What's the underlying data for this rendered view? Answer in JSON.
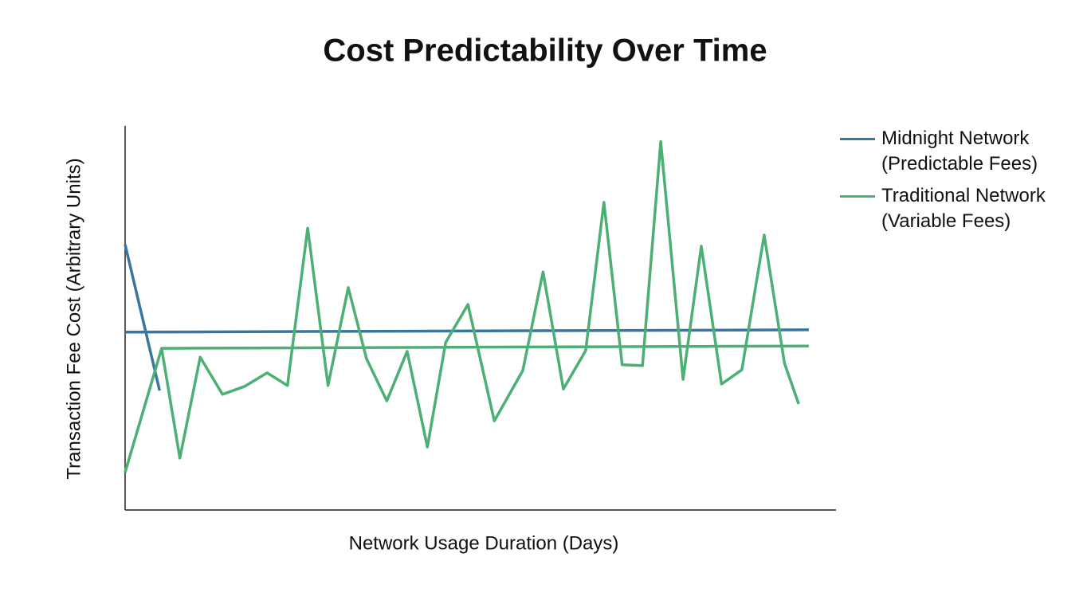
{
  "chart_data": {
    "type": "line",
    "title": "Cost Predictability Over Time",
    "xlabel": "Network Usage Duration (Days)",
    "ylabel": "Transaction Fee Cost (Arbitrary Units)",
    "xlim": [
      0,
      35
    ],
    "ylim": [
      0,
      100
    ],
    "grid": false,
    "legend": "right",
    "series": [
      {
        "name": "Midnight Network (Predictable Fees)",
        "color": "#3a75a0",
        "x": [
          0,
          1.7,
          null,
          0,
          33.7
        ],
        "values": [
          69.1,
          31.1,
          null,
          46.3,
          46.9
        ]
      },
      {
        "name": "Traditional Network (Variable Fees)",
        "color": "#4caf74",
        "x": [
          0,
          1.8,
          33.7,
          null,
          1.8,
          2.7,
          3.7,
          4.8,
          5.9,
          7.0,
          8.0,
          9.0,
          10.0,
          11.0,
          11.9,
          12.9,
          13.9,
          14.9,
          15.8,
          16.9,
          18.2,
          19.6,
          20.6,
          21.6,
          22.7,
          23.6,
          24.5,
          25.5,
          26.4,
          27.5,
          28.4,
          29.4,
          30.4,
          31.5,
          32.5,
          33.2
        ],
        "values": [
          9.8,
          42.1,
          42.7,
          null,
          42.1,
          13.5,
          39.8,
          30.1,
          32.2,
          35.7,
          32.4,
          73.4,
          32.4,
          57.9,
          39.4,
          28.4,
          41.3,
          16.4,
          43.6,
          53.5,
          23.2,
          36.3,
          62.0,
          31.5,
          41.5,
          80.1,
          37.8,
          37.6,
          95.9,
          34.0,
          68.7,
          32.8,
          36.5,
          71.6,
          38.2,
          27.6
        ]
      }
    ]
  }
}
